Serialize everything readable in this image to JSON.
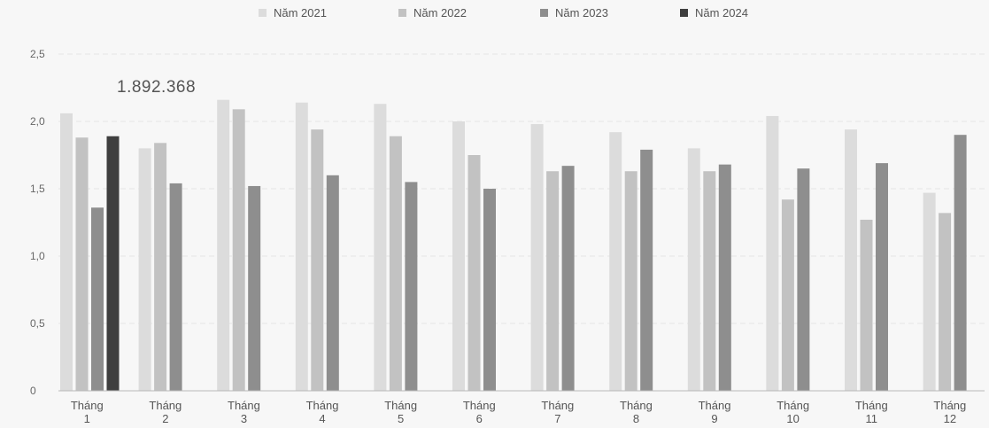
{
  "chart_data": {
    "type": "bar",
    "title": "",
    "xlabel": "",
    "ylabel": "",
    "ylim": [
      0,
      2.5
    ],
    "yticks": [
      "0",
      "0,5",
      "1,0",
      "1,5",
      "2,0",
      "2,5"
    ],
    "ytick_values": [
      0,
      0.5,
      1.0,
      1.5,
      2.0,
      2.5
    ],
    "grid": true,
    "legend_position": "top-center",
    "categories": [
      [
        "Tháng",
        "1"
      ],
      [
        "Tháng",
        "2"
      ],
      [
        "Tháng",
        "3"
      ],
      [
        "Tháng",
        "4"
      ],
      [
        "Tháng",
        "5"
      ],
      [
        "Tháng",
        "6"
      ],
      [
        "Tháng",
        "7"
      ],
      [
        "Tháng",
        "8"
      ],
      [
        "Tháng",
        "9"
      ],
      [
        "Tháng",
        "10"
      ],
      [
        "Tháng",
        "11"
      ],
      [
        "Tháng",
        "12"
      ]
    ],
    "series": [
      {
        "name": "Năm 2021",
        "color": "#dcdcdc",
        "values": [
          2.06,
          1.8,
          2.16,
          2.14,
          2.13,
          2.0,
          1.98,
          1.92,
          1.8,
          2.04,
          1.94,
          1.47
        ]
      },
      {
        "name": "Năm 2022",
        "color": "#c2c2c2",
        "values": [
          1.88,
          1.84,
          2.09,
          1.94,
          1.89,
          1.75,
          1.63,
          1.63,
          1.63,
          1.42,
          1.27,
          1.32
        ]
      },
      {
        "name": "Năm 2023",
        "color": "#8e8e8e",
        "values": [
          1.36,
          1.54,
          1.52,
          1.6,
          1.55,
          1.5,
          1.67,
          1.79,
          1.68,
          1.65,
          1.69,
          1.9
        ]
      },
      {
        "name": "Năm 2024",
        "color": "#3f3f3f",
        "values": [
          1.89,
          null,
          null,
          null,
          null,
          null,
          null,
          null,
          null,
          null,
          null,
          null
        ]
      }
    ],
    "annotations": [
      {
        "text": "1.892.368",
        "category_index": 0
      }
    ]
  }
}
